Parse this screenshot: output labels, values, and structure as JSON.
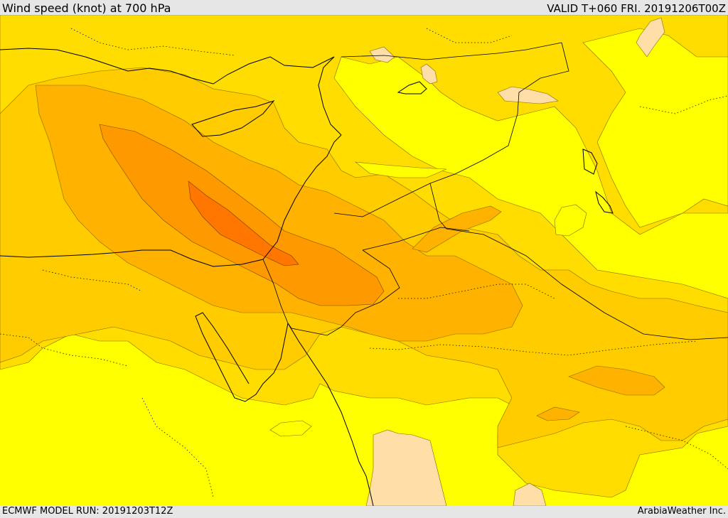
{
  "header": {
    "title": "Wind speed (knot) at 700 hPa",
    "valid": "VALID T+060 FRI. 20191206T00Z"
  },
  "footer": {
    "model_run": "ECMWF MODEL RUN: 20191203T12Z",
    "credit": "ArabiaWeather Inc."
  },
  "colors": {
    "yellow": "#ffff00",
    "gold_light": "#ffdd00",
    "gold": "#ffcc00",
    "orange_light": "#ffb300",
    "orange": "#ff9900",
    "orange_dark": "#ff7700",
    "peach": "#ffdea8",
    "coast": "#000000"
  }
}
